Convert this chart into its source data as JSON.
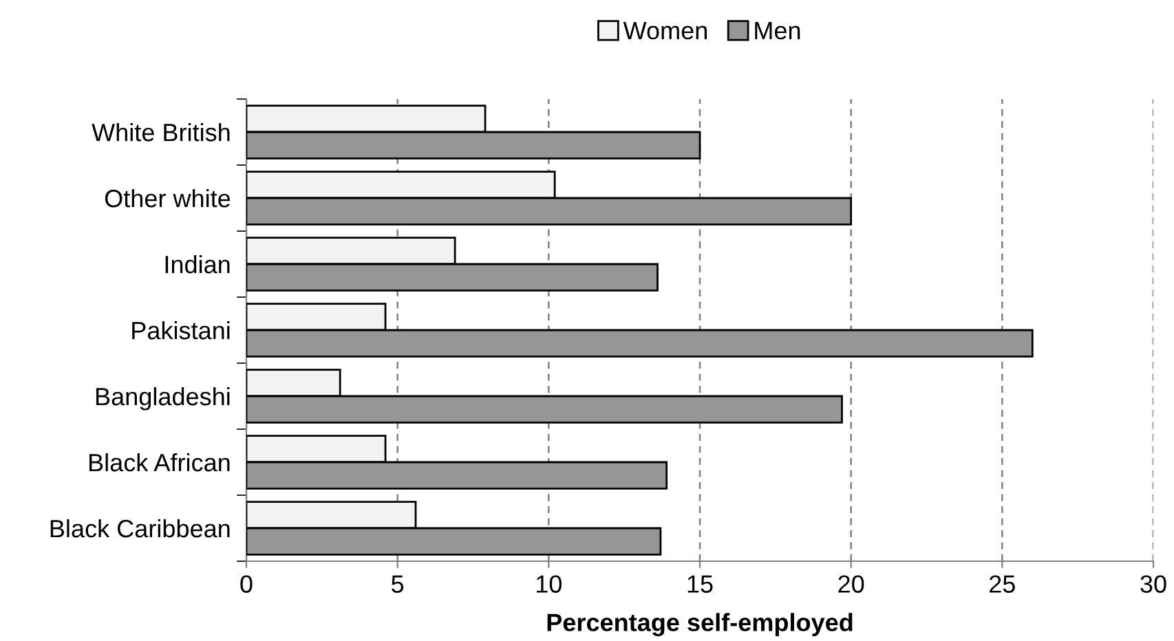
{
  "chart_data": {
    "type": "bar",
    "orientation": "horizontal",
    "xlabel": "Percentage self-employed",
    "categories": [
      "White British",
      "Other white",
      "Indian",
      "Pakistani",
      "Bangladeshi",
      "Black African",
      "Black Caribbean"
    ],
    "series": [
      {
        "name": "Women",
        "color": "#f2f2f2",
        "values": [
          7.9,
          10.2,
          6.9,
          4.6,
          3.1,
          4.6,
          5.6
        ]
      },
      {
        "name": "Men",
        "color": "#969696",
        "values": [
          15.0,
          20.0,
          13.6,
          26.0,
          19.7,
          13.9,
          13.7
        ]
      }
    ],
    "xlim": [
      0,
      30
    ],
    "xticks": [
      0,
      5,
      10,
      15,
      20,
      25,
      30
    ],
    "grid": "x",
    "legend": "top"
  }
}
